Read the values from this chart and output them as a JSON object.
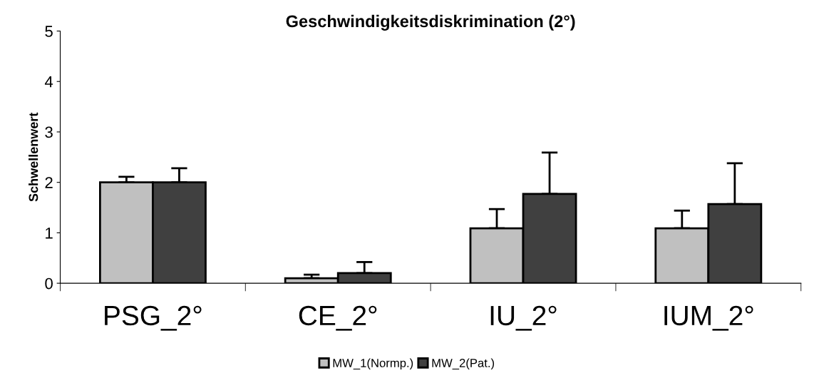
{
  "chart_data": {
    "type": "bar",
    "title": "Geschwindigkeitsdiskrimination (2°)",
    "ylabel": "Schwellenwert",
    "categories": [
      "PSG_2°",
      "CE_2°",
      "IU_2°",
      "IUM_2°"
    ],
    "series": [
      {
        "name": "MW_1(Normp.)",
        "color": "#c0c0c0",
        "values": [
          2.0,
          0.1,
          1.09,
          1.09
        ],
        "errors": [
          [
            2.0,
            2.11
          ],
          [
            0.1,
            0.17
          ],
          [
            1.09,
            1.47
          ],
          [
            1.09,
            1.44
          ]
        ]
      },
      {
        "name": "MW_2(Pat.)",
        "color": "#404040",
        "values": [
          2.0,
          0.2,
          1.77,
          1.57
        ],
        "errors": [
          [
            2.0,
            2.28
          ],
          [
            0.2,
            0.42
          ],
          [
            1.77,
            2.59
          ],
          [
            1.57,
            2.38
          ]
        ]
      }
    ],
    "ylim": [
      0,
      5
    ],
    "yticks": [
      0,
      1,
      2,
      3,
      4,
      5
    ],
    "grid": false,
    "legend": "bottom"
  }
}
